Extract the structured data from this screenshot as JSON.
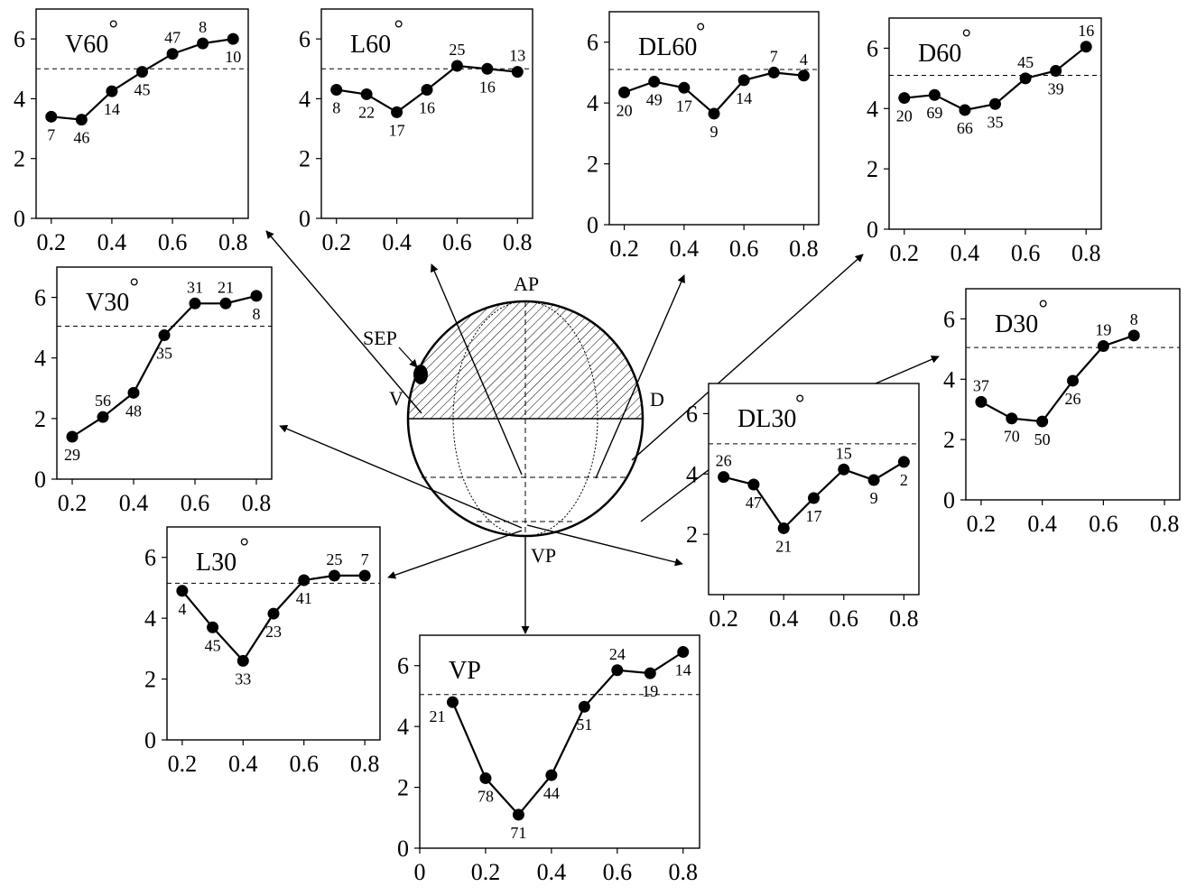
{
  "diagram": {
    "labels": {
      "ap": "AP",
      "vp": "VP",
      "v": "V",
      "d": "D",
      "sep": "SEP"
    }
  },
  "chart_data": [
    {
      "id": "v60",
      "type": "line",
      "title": "V60",
      "title_mark": "°",
      "x": [
        0.2,
        0.3,
        0.4,
        0.5,
        0.6,
        0.7,
        0.8
      ],
      "y": [
        3.4,
        3.3,
        4.25,
        4.9,
        5.5,
        5.85,
        6.0
      ],
      "point_labels": [
        "7",
        "46",
        "14",
        "45",
        "47",
        "8",
        "10"
      ],
      "threshold": 5.0,
      "xlim": [
        0.15,
        0.85
      ],
      "ylim": [
        0,
        7
      ],
      "xticks": [
        "0.2",
        "0.4",
        "0.6",
        "0.8"
      ],
      "yticks": [
        "0",
        "2",
        "4",
        "6"
      ]
    },
    {
      "id": "l60",
      "type": "line",
      "title": "L60",
      "title_mark": "°",
      "x": [
        0.2,
        0.3,
        0.4,
        0.5,
        0.6,
        0.7,
        0.8
      ],
      "y": [
        4.3,
        4.15,
        3.55,
        4.3,
        5.1,
        5.0,
        4.9
      ],
      "point_labels": [
        "8",
        "22",
        "17",
        "16",
        "25",
        "16",
        "13"
      ],
      "threshold": 5.0,
      "xlim": [
        0.15,
        0.85
      ],
      "ylim": [
        0,
        7
      ],
      "xticks": [
        "0.2",
        "0.4",
        "0.6",
        "0.8"
      ],
      "yticks": [
        "0",
        "2",
        "4",
        "6"
      ]
    },
    {
      "id": "dl60",
      "type": "line",
      "title": "DL60",
      "title_mark": "°",
      "x": [
        0.2,
        0.3,
        0.4,
        0.5,
        0.6,
        0.7,
        0.8
      ],
      "y": [
        4.35,
        4.7,
        4.5,
        3.65,
        4.75,
        5.0,
        4.9
      ],
      "point_labels": [
        "20",
        "49",
        "17",
        "9",
        "14",
        "7",
        "4"
      ],
      "threshold": 5.1,
      "xlim": [
        0.15,
        0.85
      ],
      "ylim": [
        0,
        7
      ],
      "xticks": [
        "0.2",
        "0.4",
        "0.6",
        "0.8"
      ],
      "yticks": [
        "0",
        "2",
        "4",
        "6"
      ]
    },
    {
      "id": "d60",
      "type": "line",
      "title": "D60",
      "title_mark": "°",
      "x": [
        0.2,
        0.3,
        0.4,
        0.5,
        0.6,
        0.7,
        0.8
      ],
      "y": [
        4.35,
        4.45,
        3.95,
        4.15,
        5.0,
        5.25,
        6.05
      ],
      "point_labels": [
        "20",
        "69",
        "66",
        "35",
        "45",
        "39",
        "16"
      ],
      "threshold": 5.1,
      "xlim": [
        0.15,
        0.85
      ],
      "ylim": [
        0,
        7
      ],
      "xticks": [
        "0.2",
        "0.4",
        "0.6",
        "0.8"
      ],
      "yticks": [
        "0",
        "2",
        "4",
        "6"
      ]
    },
    {
      "id": "v30",
      "type": "line",
      "title": "V30",
      "title_mark": "°",
      "x": [
        0.2,
        0.3,
        0.4,
        0.5,
        0.6,
        0.7,
        0.8
      ],
      "y": [
        1.4,
        2.05,
        2.85,
        4.75,
        5.8,
        5.8,
        6.05
      ],
      "point_labels": [
        "29",
        "56",
        "48",
        "35",
        "31",
        "21",
        "8"
      ],
      "threshold": 5.05,
      "xlim": [
        0.15,
        0.85
      ],
      "ylim": [
        0,
        7
      ],
      "xticks": [
        "0.2",
        "0.4",
        "0.6",
        "0.8"
      ],
      "yticks": [
        "0",
        "2",
        "4",
        "6"
      ]
    },
    {
      "id": "d30",
      "type": "line",
      "title": "D30",
      "title_mark": "°",
      "x": [
        0.2,
        0.3,
        0.4,
        0.5,
        0.6,
        0.7
      ],
      "y": [
        3.25,
        2.7,
        2.6,
        3.95,
        5.1,
        5.45
      ],
      "point_labels": [
        "37",
        "70",
        "50",
        "26",
        "19",
        "8"
      ],
      "threshold": 5.05,
      "xlim": [
        0.15,
        0.85
      ],
      "ylim": [
        0,
        7
      ],
      "xticks": [
        "0.2",
        "0.4",
        "0.6",
        "0.8"
      ],
      "yticks": [
        "0",
        "2",
        "4",
        "6"
      ]
    },
    {
      "id": "dl30",
      "type": "line",
      "title": "DL30",
      "title_mark": "°",
      "x": [
        0.2,
        0.3,
        0.4,
        0.5,
        0.6,
        0.7,
        0.8
      ],
      "y": [
        3.9,
        3.65,
        2.2,
        3.2,
        4.15,
        3.8,
        4.4
      ],
      "point_labels": [
        "26",
        "47",
        "21",
        "17",
        "15",
        "9",
        "2"
      ],
      "threshold": 5.0,
      "xlim": [
        0.15,
        0.85
      ],
      "ylim": [
        0,
        7
      ],
      "xticks": [
        "0.2",
        "0.4",
        "0.6",
        "0.8"
      ],
      "yticks": [
        "2",
        "4",
        "6"
      ]
    },
    {
      "id": "l30",
      "type": "line",
      "title": "L30",
      "title_mark": "°",
      "x": [
        0.2,
        0.3,
        0.4,
        0.5,
        0.6,
        0.7,
        0.8
      ],
      "y": [
        4.9,
        3.7,
        2.6,
        4.15,
        5.25,
        5.4,
        5.4
      ],
      "point_labels": [
        "4",
        "45",
        "33",
        "23",
        "41",
        "25",
        "7"
      ],
      "threshold": 5.15,
      "xlim": [
        0.15,
        0.85
      ],
      "ylim": [
        0,
        7
      ],
      "xticks": [
        "0.2",
        "0.4",
        "0.6",
        "0.8"
      ],
      "yticks": [
        "0",
        "2",
        "4",
        "6"
      ]
    },
    {
      "id": "vp",
      "type": "line",
      "title": "VP",
      "title_mark": "",
      "x": [
        0.1,
        0.2,
        0.3,
        0.4,
        0.5,
        0.6,
        0.7,
        0.8
      ],
      "y": [
        4.8,
        2.3,
        1.1,
        2.4,
        4.65,
        5.85,
        5.75,
        6.45
      ],
      "point_labels": [
        "21",
        "78",
        "71",
        "44",
        "51",
        "24",
        "19",
        "14"
      ],
      "threshold": 5.05,
      "xlim": [
        0,
        0.85
      ],
      "ylim": [
        0,
        7
      ],
      "xticks": [
        "0",
        "0.2",
        "0.4",
        "0.6",
        "0.8"
      ],
      "yticks": [
        "0",
        "2",
        "4",
        "6"
      ]
    }
  ]
}
